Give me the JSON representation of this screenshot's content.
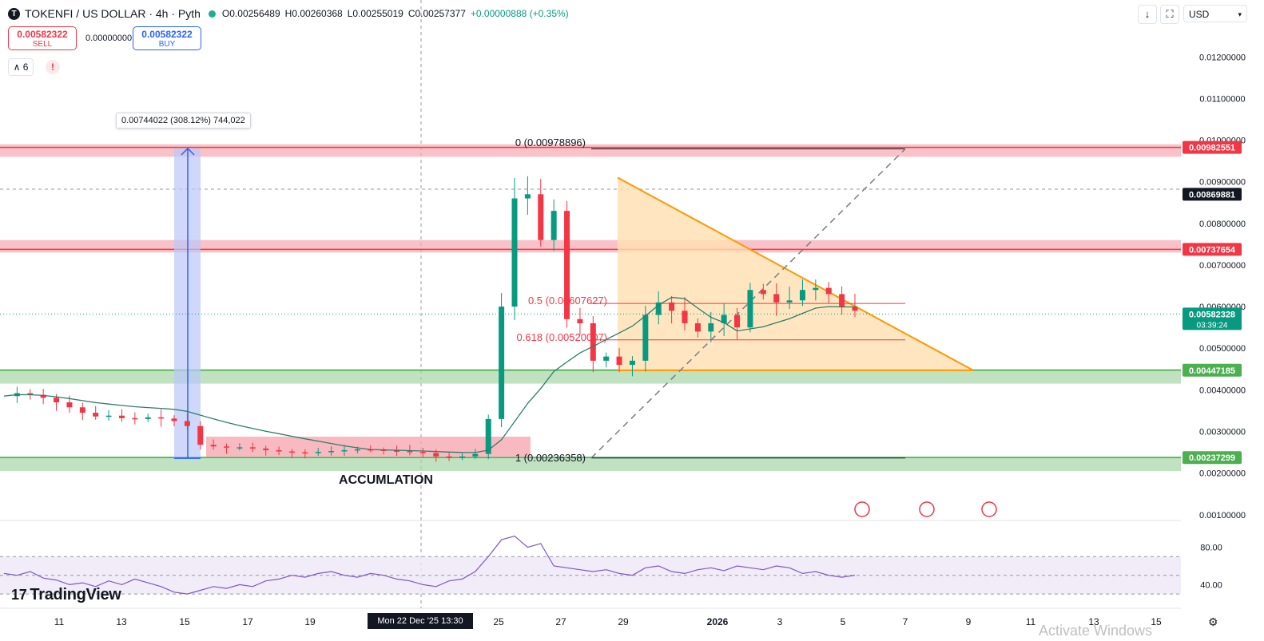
{
  "header": {
    "symbol": "TOKENFI / US DOLLAR · 4h · Pyth",
    "logo_letter": "T",
    "open": "O0.00256489",
    "high": "H0.00260368",
    "low": "L0.00255019",
    "close": "C0.00257377",
    "change": "+0.00000888 (+0.35%)"
  },
  "trade": {
    "sell_price": "0.00582322",
    "sell_label": "SELL",
    "spread": "0.00000000",
    "buy_price": "0.00582322",
    "buy_label": "BUY"
  },
  "toolbar": {
    "layers_count": "6",
    "warn": "!",
    "download_icon": "↓",
    "fullscreen_icon": "⛶",
    "currency": "USD",
    "currency_icon": "▾"
  },
  "tooltip": {
    "text": "0.00744022 (308.12%) 744,022"
  },
  "annotations": {
    "accumulation": "ACCUMLATION",
    "fib_0": "0 (0.00978896)",
    "fib_05": "0.5 (0.00607627)",
    "fib_0618": "0.618 (0.00520007)",
    "fib_1": "1 (0.00236358)"
  },
  "crosshair_label": "Mon 22 Dec '25   13:30",
  "brand": {
    "name": "TradingView",
    "mark": "17"
  },
  "watermark": "Activate Windows",
  "colors": {
    "up": "#089981",
    "down": "#f23645",
    "triangle": "#ff9800",
    "resistance": "#f23645",
    "support": "#4caf50",
    "rsi": "#7e57c2"
  },
  "chart_data": [
    {
      "type": "candlestick",
      "title": "TOKENFI / US DOLLAR · 4h · Pyth",
      "y_axis_ticks": [
        "0.01200000",
        "0.01100000",
        "0.01000000",
        "0.00900000",
        "0.00800000",
        "0.00700000",
        "0.00600000",
        "0.00500000",
        "0.00400000",
        "0.00300000",
        "0.00200000",
        "0.00100000"
      ],
      "x_axis_ticks": [
        "11",
        "13",
        "15",
        "17",
        "19",
        "Mon 22 Dec '25",
        "25",
        "27",
        "29",
        "2026",
        "3",
        "5",
        "7",
        "9",
        "11",
        "13",
        "15"
      ],
      "ylim": [
        0.0009,
        0.0126
      ],
      "price_labels": [
        {
          "value": "0.00982551",
          "kind": "resistance",
          "color": "#f23645"
        },
        {
          "value": "0.00869881",
          "kind": "crosshair",
          "color": "#131722"
        },
        {
          "value": "0.00737654",
          "kind": "resistance",
          "color": "#f23645"
        },
        {
          "value": "0.00582328",
          "kind": "last_price",
          "countdown": "03:39:24",
          "color": "#089981"
        },
        {
          "value": "0.00447185",
          "kind": "support",
          "color": "#4caf50"
        },
        {
          "value": "0.00237299",
          "kind": "support",
          "color": "#4caf50"
        }
      ],
      "zones": [
        {
          "from": 0.0096,
          "to": 0.0099,
          "kind": "resistance"
        },
        {
          "from": 0.0073,
          "to": 0.0076,
          "kind": "resistance"
        },
        {
          "from": 0.00415,
          "to": 0.0045,
          "kind": "support"
        },
        {
          "from": 0.00205,
          "to": 0.0024,
          "kind": "support"
        }
      ],
      "fibonacci": [
        {
          "level": "0",
          "price": 0.00978896
        },
        {
          "level": "0.5",
          "price": 0.00607627
        },
        {
          "level": "0.618",
          "price": 0.00520007
        },
        {
          "level": "1",
          "price": 0.00236358
        }
      ],
      "triangle": {
        "apex_top": 0.0091,
        "base": 0.00447,
        "apex_date": "9"
      },
      "measure": {
        "from": 0.00236,
        "to": 0.0098,
        "text": "0.00744022 (308.12%) 744,022"
      },
      "series": [
        {
          "name": "price",
          "values": [
            0.00385,
            0.00392,
            0.00388,
            0.00381,
            0.0037,
            0.00358,
            0.00345,
            0.00336,
            0.00338,
            0.00332,
            0.0033,
            0.00334,
            0.00331,
            0.00325,
            0.00313,
            0.00268,
            0.00264,
            0.00262,
            0.00262,
            0.00259,
            0.00255,
            0.00252,
            0.0025,
            0.00249,
            0.00251,
            0.00253,
            0.00255,
            0.00257,
            0.00256,
            0.00254,
            0.00253,
            0.00251,
            0.00248,
            0.0024,
            0.00238,
            0.0024,
            0.00246,
            0.0033,
            0.006,
            0.0086,
            0.0087,
            0.0076,
            0.0083,
            0.0057,
            0.0056,
            0.0047,
            0.0048,
            0.0046,
            0.0047,
            0.0058,
            0.0061,
            0.0059,
            0.0056,
            0.0054,
            0.0056,
            0.0058,
            0.0055,
            0.0064,
            0.0063,
            0.0061,
            0.00615,
            0.0064,
            0.00645,
            0.0063,
            0.006,
            0.0059
          ]
        }
      ]
    },
    {
      "type": "line",
      "title": "",
      "y_axis_ticks": [
        "80.00",
        "40.00"
      ],
      "ylim": [
        25,
        95
      ],
      "bands": [
        70,
        50,
        30
      ],
      "series": [
        {
          "name": "RSI",
          "values": [
            52,
            50,
            54,
            47,
            45,
            40,
            42,
            38,
            44,
            40,
            46,
            42,
            38,
            32,
            30,
            34,
            38,
            36,
            40,
            38,
            44,
            46,
            50,
            48,
            52,
            54,
            50,
            48,
            52,
            50,
            46,
            44,
            40,
            38,
            44,
            46,
            54,
            70,
            88,
            92,
            80,
            84,
            60,
            58,
            56,
            54,
            56,
            52,
            50,
            58,
            60,
            54,
            52,
            56,
            58,
            55,
            60,
            58,
            56,
            60,
            58,
            52,
            54,
            50,
            48,
            50
          ]
        }
      ]
    }
  ]
}
